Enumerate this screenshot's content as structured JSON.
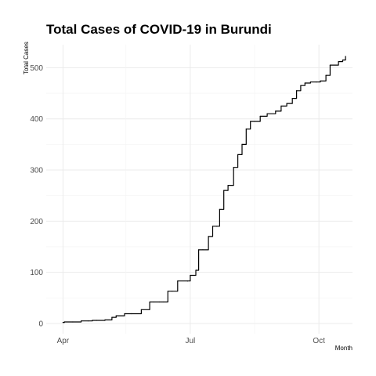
{
  "chart_data": {
    "type": "line",
    "title": "Total Cases of COVID-19 in Burundi",
    "xlabel": "Month",
    "ylabel": "Total Cases",
    "x_ticks": [
      "Apr",
      "Jul",
      "Oct"
    ],
    "y_ticks": [
      0,
      100,
      200,
      300,
      400,
      500
    ],
    "xlim": [
      "2020-03-20",
      "2020-10-25"
    ],
    "ylim": [
      -20,
      545
    ],
    "grid": true,
    "legend": "none",
    "series": [
      {
        "color": "#000000",
        "x": [
          "2020-04-01",
          "2020-04-02",
          "2020-04-08",
          "2020-04-14",
          "2020-04-19",
          "2020-04-22",
          "2020-04-25",
          "2020-05-01",
          "2020-05-06",
          "2020-05-09",
          "2020-05-15",
          "2020-05-20",
          "2020-05-27",
          "2020-06-02",
          "2020-06-05",
          "2020-06-09",
          "2020-06-12",
          "2020-06-15",
          "2020-06-18",
          "2020-06-22",
          "2020-06-29",
          "2020-07-01",
          "2020-07-05",
          "2020-07-07",
          "2020-07-10",
          "2020-07-14",
          "2020-07-17",
          "2020-07-20",
          "2020-07-22",
          "2020-07-25",
          "2020-07-28",
          "2020-08-01",
          "2020-08-04",
          "2020-08-07",
          "2020-08-10",
          "2020-08-13",
          "2020-08-16",
          "2020-08-20",
          "2020-08-25",
          "2020-08-31",
          "2020-09-04",
          "2020-09-08",
          "2020-09-12",
          "2020-09-15",
          "2020-09-18",
          "2020-09-21",
          "2020-09-25",
          "2020-09-29",
          "2020-10-02",
          "2020-10-06",
          "2020-10-09",
          "2020-10-15",
          "2020-10-18",
          "2020-10-20"
        ],
        "values": [
          2,
          3,
          3,
          5,
          5,
          6,
          6,
          7,
          12,
          15,
          19,
          19,
          27,
          42,
          42,
          42,
          42,
          63,
          63,
          83,
          83,
          94,
          104,
          144,
          144,
          170,
          190,
          190,
          223,
          260,
          270,
          305,
          330,
          350,
          380,
          395,
          395,
          405,
          410,
          415,
          425,
          430,
          440,
          455,
          465,
          470,
          472,
          472,
          474,
          485,
          505,
          512,
          515,
          522
        ]
      }
    ]
  }
}
